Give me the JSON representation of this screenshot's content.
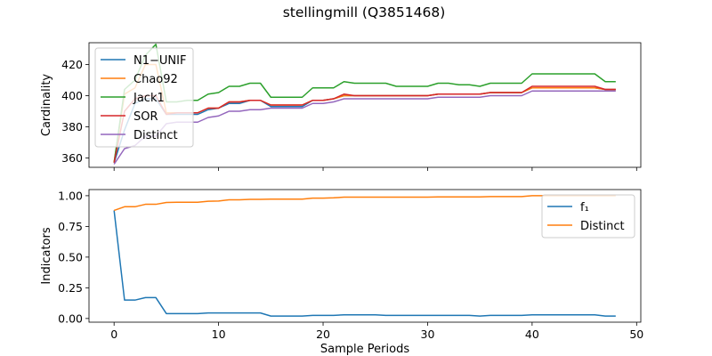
{
  "figure": {
    "title": "stellingmill (Q3851468)"
  },
  "chart_data": [
    {
      "type": "line",
      "id": "top",
      "ylabel": "Cardinality",
      "xlim": [
        -2.4,
        50.4
      ],
      "ylim": [
        354,
        434
      ],
      "xticks": [
        0,
        10,
        20,
        30,
        40,
        50
      ],
      "show_xticklabels": false,
      "yticks": [
        360,
        380,
        400,
        420
      ],
      "legend": "upper-left",
      "series": [
        {
          "name": "N1−UNIF",
          "color": "#1f77b4",
          "x": [
            0,
            1,
            2,
            3,
            4,
            5,
            6,
            7,
            8,
            9,
            10,
            11,
            12,
            13,
            14,
            15,
            16,
            17,
            18,
            19,
            20,
            21,
            22,
            23,
            24,
            25,
            26,
            27,
            28,
            29,
            30,
            31,
            32,
            33,
            34,
            35,
            36,
            37,
            38,
            39,
            40,
            41,
            42,
            43,
            44,
            45,
            46,
            47,
            48
          ],
          "y": [
            357,
            378,
            395,
            398,
            398,
            388,
            388,
            388,
            388,
            391,
            392,
            395,
            395,
            397,
            397,
            393,
            393,
            393,
            393,
            397,
            397,
            398,
            400,
            400,
            400,
            400,
            400,
            400,
            400,
            400,
            400,
            401,
            401,
            401,
            401,
            401,
            402,
            402,
            402,
            402,
            405,
            405,
            405,
            405,
            405,
            405,
            405,
            404,
            404
          ]
        },
        {
          "name": "Chao92",
          "color": "#ff7f0e",
          "x": [
            0,
            1,
            2,
            3,
            4,
            5,
            6,
            7,
            8,
            9,
            10,
            11,
            12,
            13,
            14,
            15,
            16,
            17,
            18,
            19,
            20,
            21,
            22,
            23,
            24,
            25,
            26,
            27,
            28,
            29,
            30,
            31,
            32,
            33,
            34,
            35,
            36,
            37,
            38,
            39,
            40,
            41,
            42,
            43,
            44,
            45,
            46,
            47,
            48
          ],
          "y": [
            357,
            401,
            405,
            420,
            420,
            389,
            389,
            389,
            389,
            392,
            392,
            396,
            396,
            397,
            397,
            394,
            394,
            394,
            394,
            397,
            397,
            398,
            400,
            400,
            400,
            400,
            400,
            400,
            400,
            400,
            400,
            401,
            401,
            401,
            401,
            401,
            402,
            402,
            402,
            402,
            405,
            405,
            405,
            405,
            405,
            405,
            405,
            404,
            404
          ]
        },
        {
          "name": "Jack1",
          "color": "#2ca02c",
          "x": [
            0,
            1,
            2,
            3,
            4,
            5,
            6,
            7,
            8,
            9,
            10,
            11,
            12,
            13,
            14,
            15,
            16,
            17,
            18,
            19,
            20,
            21,
            22,
            23,
            24,
            25,
            26,
            27,
            28,
            29,
            30,
            31,
            32,
            33,
            34,
            35,
            36,
            37,
            38,
            39,
            40,
            41,
            42,
            43,
            44,
            45,
            46,
            47,
            48
          ],
          "y": [
            357,
            404,
            410,
            426,
            433,
            396,
            396,
            397,
            397,
            401,
            402,
            406,
            406,
            408,
            408,
            399,
            399,
            399,
            399,
            405,
            405,
            405,
            409,
            408,
            408,
            408,
            408,
            406,
            406,
            406,
            406,
            408,
            408,
            407,
            407,
            406,
            408,
            408,
            408,
            408,
            414,
            414,
            414,
            414,
            414,
            414,
            414,
            409,
            409
          ]
        },
        {
          "name": "SOR",
          "color": "#d62728",
          "x": [
            0,
            1,
            2,
            3,
            4,
            5,
            6,
            7,
            8,
            9,
            10,
            11,
            12,
            13,
            14,
            15,
            16,
            17,
            18,
            19,
            20,
            21,
            22,
            23,
            24,
            25,
            26,
            27,
            28,
            29,
            30,
            31,
            32,
            33,
            34,
            35,
            36,
            37,
            38,
            39,
            40,
            41,
            42,
            43,
            44,
            45,
            46,
            47,
            48
          ],
          "y": [
            357,
            390,
            398,
            400,
            400,
            388,
            389,
            389,
            389,
            392,
            392,
            396,
            396,
            397,
            397,
            394,
            394,
            394,
            394,
            397,
            397,
            398,
            401,
            400,
            400,
            400,
            400,
            400,
            400,
            400,
            400,
            401,
            401,
            401,
            401,
            401,
            402,
            402,
            402,
            402,
            406,
            406,
            406,
            406,
            406,
            406,
            406,
            404,
            404
          ]
        },
        {
          "name": "Distinct",
          "color": "#9467bd",
          "x": [
            0,
            1,
            2,
            3,
            4,
            5,
            6,
            7,
            8,
            9,
            10,
            11,
            12,
            13,
            14,
            15,
            16,
            17,
            18,
            19,
            20,
            21,
            22,
            23,
            24,
            25,
            26,
            27,
            28,
            29,
            30,
            31,
            32,
            33,
            34,
            35,
            36,
            37,
            38,
            39,
            40,
            41,
            42,
            43,
            44,
            45,
            46,
            47,
            48
          ],
          "y": [
            356,
            366,
            368,
            374,
            374,
            382,
            383,
            383,
            383,
            386,
            387,
            390,
            390,
            391,
            391,
            392,
            392,
            392,
            392,
            395,
            395,
            396,
            398,
            398,
            398,
            398,
            398,
            398,
            398,
            398,
            398,
            399,
            399,
            399,
            399,
            399,
            400,
            400,
            400,
            400,
            403,
            403,
            403,
            403,
            403,
            403,
            403,
            403,
            403
          ]
        }
      ]
    },
    {
      "type": "line",
      "id": "bottom",
      "xlabel": "Sample Periods",
      "ylabel": "Indicators",
      "xlim": [
        -2.4,
        50.4
      ],
      "ylim": [
        -0.03,
        1.05
      ],
      "xticks": [
        0,
        10,
        20,
        30,
        40,
        50
      ],
      "show_xticklabels": true,
      "yticks": [
        0.0,
        0.25,
        0.5,
        0.75,
        1.0
      ],
      "ytick_labels": [
        "0.00",
        "0.25",
        "0.50",
        "0.75",
        "1.00"
      ],
      "legend": "upper-right",
      "series": [
        {
          "name": "f₁",
          "color": "#1f77b4",
          "x": [
            0,
            1,
            2,
            3,
            4,
            5,
            6,
            7,
            8,
            9,
            10,
            11,
            12,
            13,
            14,
            15,
            16,
            17,
            18,
            19,
            20,
            21,
            22,
            23,
            24,
            25,
            26,
            27,
            28,
            29,
            30,
            31,
            32,
            33,
            34,
            35,
            36,
            37,
            38,
            39,
            40,
            41,
            42,
            43,
            44,
            45,
            46,
            47,
            48
          ],
          "y": [
            0.88,
            0.15,
            0.15,
            0.17,
            0.17,
            0.04,
            0.04,
            0.04,
            0.04,
            0.045,
            0.045,
            0.045,
            0.045,
            0.045,
            0.045,
            0.02,
            0.02,
            0.02,
            0.02,
            0.025,
            0.025,
            0.025,
            0.03,
            0.03,
            0.03,
            0.03,
            0.025,
            0.025,
            0.025,
            0.025,
            0.025,
            0.025,
            0.025,
            0.025,
            0.025,
            0.02,
            0.025,
            0.025,
            0.025,
            0.025,
            0.03,
            0.03,
            0.03,
            0.03,
            0.03,
            0.03,
            0.03,
            0.02,
            0.02
          ]
        },
        {
          "name": "Distinct",
          "color": "#ff7f0e",
          "x": [
            0,
            1,
            2,
            3,
            4,
            5,
            6,
            7,
            8,
            9,
            10,
            11,
            12,
            13,
            14,
            15,
            16,
            17,
            18,
            19,
            20,
            21,
            22,
            23,
            24,
            25,
            26,
            27,
            28,
            29,
            30,
            31,
            32,
            33,
            34,
            35,
            36,
            37,
            38,
            39,
            40,
            41,
            42,
            43,
            44,
            45,
            46,
            47,
            48
          ],
          "y": [
            0.88,
            0.91,
            0.91,
            0.93,
            0.93,
            0.945,
            0.947,
            0.947,
            0.947,
            0.955,
            0.957,
            0.967,
            0.967,
            0.97,
            0.97,
            0.972,
            0.972,
            0.972,
            0.972,
            0.98,
            0.98,
            0.983,
            0.988,
            0.988,
            0.988,
            0.988,
            0.988,
            0.988,
            0.988,
            0.988,
            0.988,
            0.99,
            0.99,
            0.99,
            0.99,
            0.99,
            0.993,
            0.993,
            0.993,
            0.993,
            1.0,
            1.0,
            1.0,
            1.0,
            1.0,
            1.0,
            1.0,
            1.0,
            1.0
          ]
        }
      ]
    }
  ]
}
